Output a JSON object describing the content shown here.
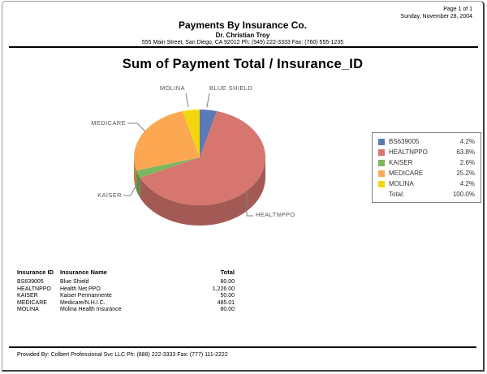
{
  "page": {
    "page_number": "Page 1 of 1",
    "date": "Sunday, November 28, 2004",
    "company": "Payments By Insurance Co.",
    "doctor": "Dr. Christian Troy",
    "address": "555 Main Street, San Diego, CA 92012 Ph: (949) 222-3333 Fax: (760) 555-1235",
    "footer": "Provided By: Colbert Professional Svc LLC Ph: (888) 222-3333 Fax: (777) 111-2222"
  },
  "chart_data": {
    "type": "pie",
    "style": "3d-pie",
    "title": "Sum of Payment Total / Insurance_ID",
    "slices": [
      {
        "id": "BS639005",
        "label": "BLUE SHIELD",
        "percent": 4.2,
        "color": "#5a7bb5"
      },
      {
        "id": "HEALTNPPO",
        "label": "HEALTNPPO",
        "percent": 63.8,
        "color": "#d6766f"
      },
      {
        "id": "KAISER",
        "label": "KAISER",
        "percent": 2.6,
        "color": "#7eb55f"
      },
      {
        "id": "MEDICARE",
        "label": "MEDICARE",
        "percent": 25.2,
        "color": "#fca853"
      },
      {
        "id": "MOLINA",
        "label": "MOLINA",
        "percent": 4.2,
        "color": "#f3d70e"
      }
    ],
    "legend": {
      "position": "right",
      "total_label": "Total:",
      "total_value": "100.0%"
    }
  },
  "table": {
    "headers": [
      "Insurance ID",
      "Insurance Name",
      "Total"
    ],
    "rows": [
      [
        "BS639005",
        "Blue Shield",
        "80.00"
      ],
      [
        "HEALTNPPO",
        "Health Net PPO",
        "1,226.00"
      ],
      [
        "KAISER",
        "Kaiser Permannente",
        "50.00"
      ],
      [
        "MEDICARE",
        "Medicare/N.H.I.C.",
        "485.01"
      ],
      [
        "MOLINA",
        "Molina Health Insurance",
        "80.00"
      ]
    ]
  }
}
